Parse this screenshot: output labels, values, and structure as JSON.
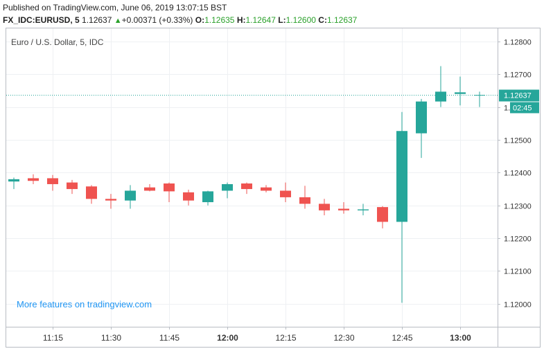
{
  "published": "Published on TradingView.com, June 06, 2019 13:07:15 BST",
  "quote": {
    "symbol": "FX_IDC:EURUSD, 5",
    "last": "1.12637",
    "change_icon": "up-triangle-icon",
    "change": "+0.00371 (+0.33%)",
    "open_label": "O:",
    "open": "1.12635",
    "high_label": "H:",
    "high": "1.12647",
    "low_label": "L:",
    "low": "1.12600",
    "close_label": "C:",
    "close": "1.12637"
  },
  "colors": {
    "up": "#26a69a",
    "down": "#ef5350",
    "value_text": "#2aa02a",
    "promo": "#2196f3",
    "grid": "#eef0f3"
  },
  "promo_text": "More features on tradingview.com",
  "countdown": "02:45",
  "chart_data": {
    "type": "candlestick",
    "title": "Euro / U.S. Dollar, 5, IDC",
    "ylim": [
      1.1193,
      1.1284
    ],
    "y_ticks": [
      "1.12800",
      "1.12700",
      "1.12600",
      "1.12500",
      "1.12400",
      "1.12300",
      "1.12200",
      "1.12100",
      "1.12000"
    ],
    "y_tick_values": [
      1.128,
      1.127,
      1.126,
      1.125,
      1.124,
      1.123,
      1.122,
      1.121,
      1.12
    ],
    "x_ticks": [
      "11:15",
      "11:30",
      "11:45",
      "12:00",
      "12:15",
      "12:30",
      "12:45",
      "13:00"
    ],
    "x_tick_times": [
      "11:15",
      "11:30",
      "11:45",
      "12:00",
      "12:15",
      "12:30",
      "12:45",
      "13:00"
    ],
    "bold_x_ticks": [
      "12:00",
      "13:00"
    ],
    "last_price": 1.12637,
    "last_price_label": "1.12637",
    "candles": [
      {
        "time": "11:05",
        "open": 1.12373,
        "high": 1.12385,
        "low": 1.1235,
        "close": 1.1238
      },
      {
        "time": "11:10",
        "open": 1.12383,
        "high": 1.12395,
        "low": 1.12365,
        "close": 1.12375
      },
      {
        "time": "11:15",
        "open": 1.12383,
        "high": 1.12393,
        "low": 1.12345,
        "close": 1.12365
      },
      {
        "time": "11:20",
        "open": 1.1237,
        "high": 1.12378,
        "low": 1.12335,
        "close": 1.1235
      },
      {
        "time": "11:25",
        "open": 1.12358,
        "high": 1.12362,
        "low": 1.12305,
        "close": 1.1232
      },
      {
        "time": "11:30",
        "open": 1.1232,
        "high": 1.12335,
        "low": 1.1229,
        "close": 1.12315
      },
      {
        "time": "11:35",
        "open": 1.12315,
        "high": 1.12362,
        "low": 1.1229,
        "close": 1.12345
      },
      {
        "time": "11:40",
        "open": 1.12355,
        "high": 1.12365,
        "low": 1.12343,
        "close": 1.12345
      },
      {
        "time": "11:45",
        "open": 1.12367,
        "high": 1.1237,
        "low": 1.1231,
        "close": 1.12343
      },
      {
        "time": "11:50",
        "open": 1.1234,
        "high": 1.12348,
        "low": 1.123,
        "close": 1.12315
      },
      {
        "time": "11:55",
        "open": 1.1231,
        "high": 1.12345,
        "low": 1.123,
        "close": 1.12343
      },
      {
        "time": "12:00",
        "open": 1.12345,
        "high": 1.1237,
        "low": 1.12322,
        "close": 1.12365
      },
      {
        "time": "12:05",
        "open": 1.12367,
        "high": 1.1237,
        "low": 1.12335,
        "close": 1.1235
      },
      {
        "time": "12:10",
        "open": 1.12355,
        "high": 1.12362,
        "low": 1.1234,
        "close": 1.12345
      },
      {
        "time": "12:15",
        "open": 1.12345,
        "high": 1.1237,
        "low": 1.1231,
        "close": 1.12325
      },
      {
        "time": "12:20",
        "open": 1.12325,
        "high": 1.1236,
        "low": 1.1229,
        "close": 1.12305
      },
      {
        "time": "12:25",
        "open": 1.12305,
        "high": 1.1232,
        "low": 1.1227,
        "close": 1.12285
      },
      {
        "time": "12:30",
        "open": 1.1229,
        "high": 1.1231,
        "low": 1.12275,
        "close": 1.12285
      },
      {
        "time": "12:35",
        "open": 1.12285,
        "high": 1.12305,
        "low": 1.1227,
        "close": 1.12288
      },
      {
        "time": "12:40",
        "open": 1.12295,
        "high": 1.12298,
        "low": 1.1223,
        "close": 1.1225
      },
      {
        "time": "12:45",
        "open": 1.1225,
        "high": 1.12585,
        "low": 1.12003,
        "close": 1.12527
      },
      {
        "time": "12:50",
        "open": 1.1252,
        "high": 1.12625,
        "low": 1.12445,
        "close": 1.12617
      },
      {
        "time": "12:55",
        "open": 1.12617,
        "high": 1.12725,
        "low": 1.126,
        "close": 1.12647
      },
      {
        "time": "13:00",
        "open": 1.1264,
        "high": 1.12693,
        "low": 1.12605,
        "close": 1.12645
      },
      {
        "time": "13:05",
        "open": 1.12635,
        "high": 1.12647,
        "low": 1.126,
        "close": 1.12637
      }
    ]
  }
}
